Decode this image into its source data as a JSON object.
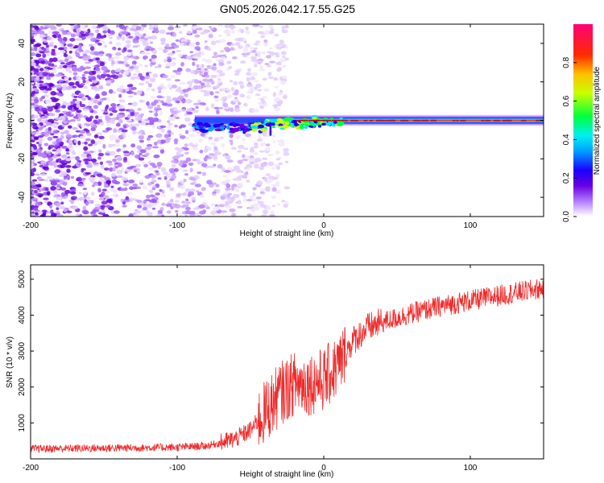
{
  "figure": {
    "title": "GN05.2026.042.17.55.G25"
  },
  "chart_data": [
    {
      "type": "heatmap",
      "title": "GN05.2026.042.17.55.G25",
      "xlabel": "Height of straight line (km)",
      "ylabel": "Frequency (Hz)",
      "xlim": [
        -200,
        150
      ],
      "ylim": [
        -50,
        50
      ],
      "xticks": [
        -200,
        -100,
        0,
        100
      ],
      "yticks": [
        -40,
        -20,
        0,
        20,
        40
      ],
      "colorbar": {
        "label": "Normalized spectral amplitude",
        "range": [
          0,
          1
        ],
        "ticks": [
          0.0,
          0.2,
          0.4,
          0.6,
          0.8
        ],
        "tick_labels": [
          "0.0",
          "0.2",
          "0.4",
          "0.6",
          "0.8"
        ],
        "colormap": [
          "#ffffff",
          "#b27bff",
          "#6a00e0",
          "#1c00ff",
          "#00e5ff",
          "#00ff40",
          "#c8ff00",
          "#ffc000",
          "#ff2a00",
          "#ff0070"
        ]
      },
      "ridge": {
        "description_x_start": -88,
        "x_end": 150,
        "center_freq": 0
      }
    },
    {
      "type": "line",
      "xlabel": "Height of straight line (km)",
      "ylabel": "SNR (10 * v/v)",
      "xlim": [
        -200,
        150
      ],
      "ylim": [
        0,
        5400
      ],
      "xticks": [
        -200,
        -100,
        0,
        100
      ],
      "yticks": [
        1000,
        2000,
        3000,
        4000,
        5000
      ],
      "series": [
        {
          "name": "SNR",
          "color": "#ee2a2a",
          "envelope_x": [
            -200,
            -150,
            -100,
            -80,
            -70,
            -60,
            -50,
            -40,
            -30,
            -20,
            -10,
            0,
            10,
            20,
            30,
            40,
            60,
            80,
            100,
            120,
            150
          ],
          "envelope_y": [
            280,
            300,
            320,
            360,
            450,
            560,
            800,
            1300,
            1800,
            2100,
            2100,
            2200,
            2600,
            3300,
            3650,
            3800,
            4050,
            4250,
            4400,
            4550,
            4750
          ]
        }
      ]
    }
  ]
}
